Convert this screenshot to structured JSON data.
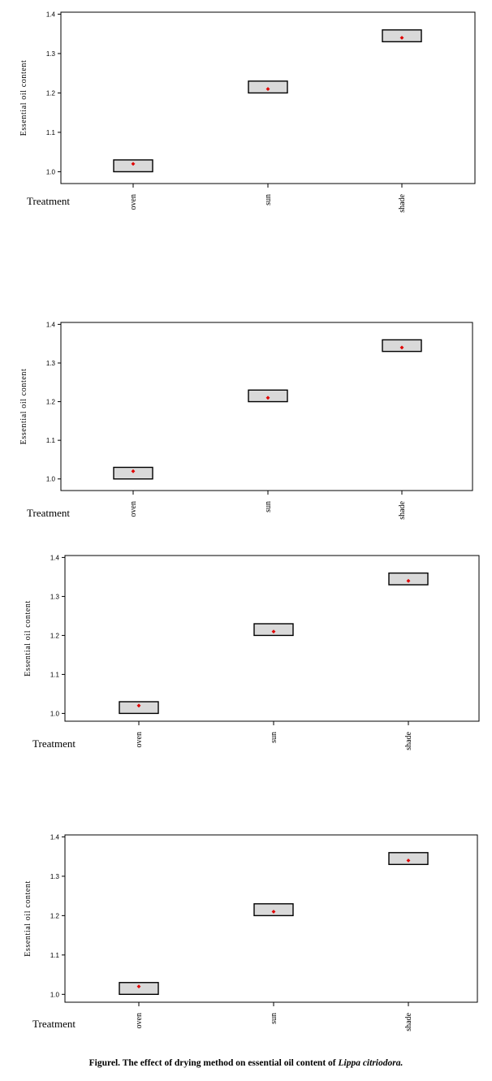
{
  "chart_data": [
    {
      "type": "box",
      "categories": [
        "oven",
        "sun",
        "shade"
      ],
      "xlabel": "Treatment",
      "ylabel": "Essential oil content",
      "yticks": [
        "1.0",
        "1.1",
        "1.2",
        "1.3",
        "1.4"
      ],
      "ylim": [
        0.97,
        1.405
      ],
      "boxes": [
        {
          "low": 1.0,
          "high": 1.03,
          "mean": 1.02
        },
        {
          "low": 1.2,
          "high": 1.23,
          "mean": 1.21
        },
        {
          "low": 1.33,
          "high": 1.36,
          "mean": 1.34
        }
      ],
      "box_color": "#d9d9d9",
      "mean_color": "#e00000",
      "grid": false
    },
    {
      "type": "box",
      "categories": [
        "oven",
        "sun",
        "shade"
      ],
      "xlabel": "Treatment",
      "ylabel": "Essential oil content",
      "yticks": [
        "1.0",
        "1.1",
        "1.2",
        "1.3",
        "1.4"
      ],
      "ylim": [
        0.97,
        1.405
      ],
      "boxes": [
        {
          "low": 1.0,
          "high": 1.03,
          "mean": 1.02
        },
        {
          "low": 1.2,
          "high": 1.23,
          "mean": 1.21
        },
        {
          "low": 1.33,
          "high": 1.36,
          "mean": 1.34
        }
      ],
      "box_color": "#d9d9d9",
      "mean_color": "#e00000",
      "grid": false
    },
    {
      "type": "box",
      "categories": [
        "oven",
        "sun",
        "shade"
      ],
      "xlabel": "Treatment",
      "ylabel": "Essential oil content",
      "yticks": [
        "1.0",
        "1.1",
        "1.2",
        "1.3",
        "1.4"
      ],
      "ylim": [
        0.98,
        1.405
      ],
      "boxes": [
        {
          "low": 1.0,
          "high": 1.03,
          "mean": 1.02
        },
        {
          "low": 1.2,
          "high": 1.23,
          "mean": 1.21
        },
        {
          "low": 1.33,
          "high": 1.36,
          "mean": 1.34
        }
      ],
      "box_color": "#d9d9d9",
      "mean_color": "#e00000",
      "grid": false
    },
    {
      "type": "box",
      "categories": [
        "oven",
        "sun",
        "shade"
      ],
      "xlabel": "Treatment",
      "ylabel": "Essential oil content",
      "yticks": [
        "1.0",
        "1.1",
        "1.2",
        "1.3",
        "1.4"
      ],
      "ylim": [
        0.98,
        1.405
      ],
      "boxes": [
        {
          "low": 1.0,
          "high": 1.03,
          "mean": 1.02
        },
        {
          "low": 1.2,
          "high": 1.23,
          "mean": 1.21
        },
        {
          "low": 1.33,
          "high": 1.36,
          "mean": 1.34
        }
      ],
      "box_color": "#d9d9d9",
      "mean_color": "#e00000",
      "grid": false
    }
  ],
  "caption": {
    "prefix": "Figurel. The effect of drying method on essential oil content of",
    "species": "Lippa citriodora."
  }
}
